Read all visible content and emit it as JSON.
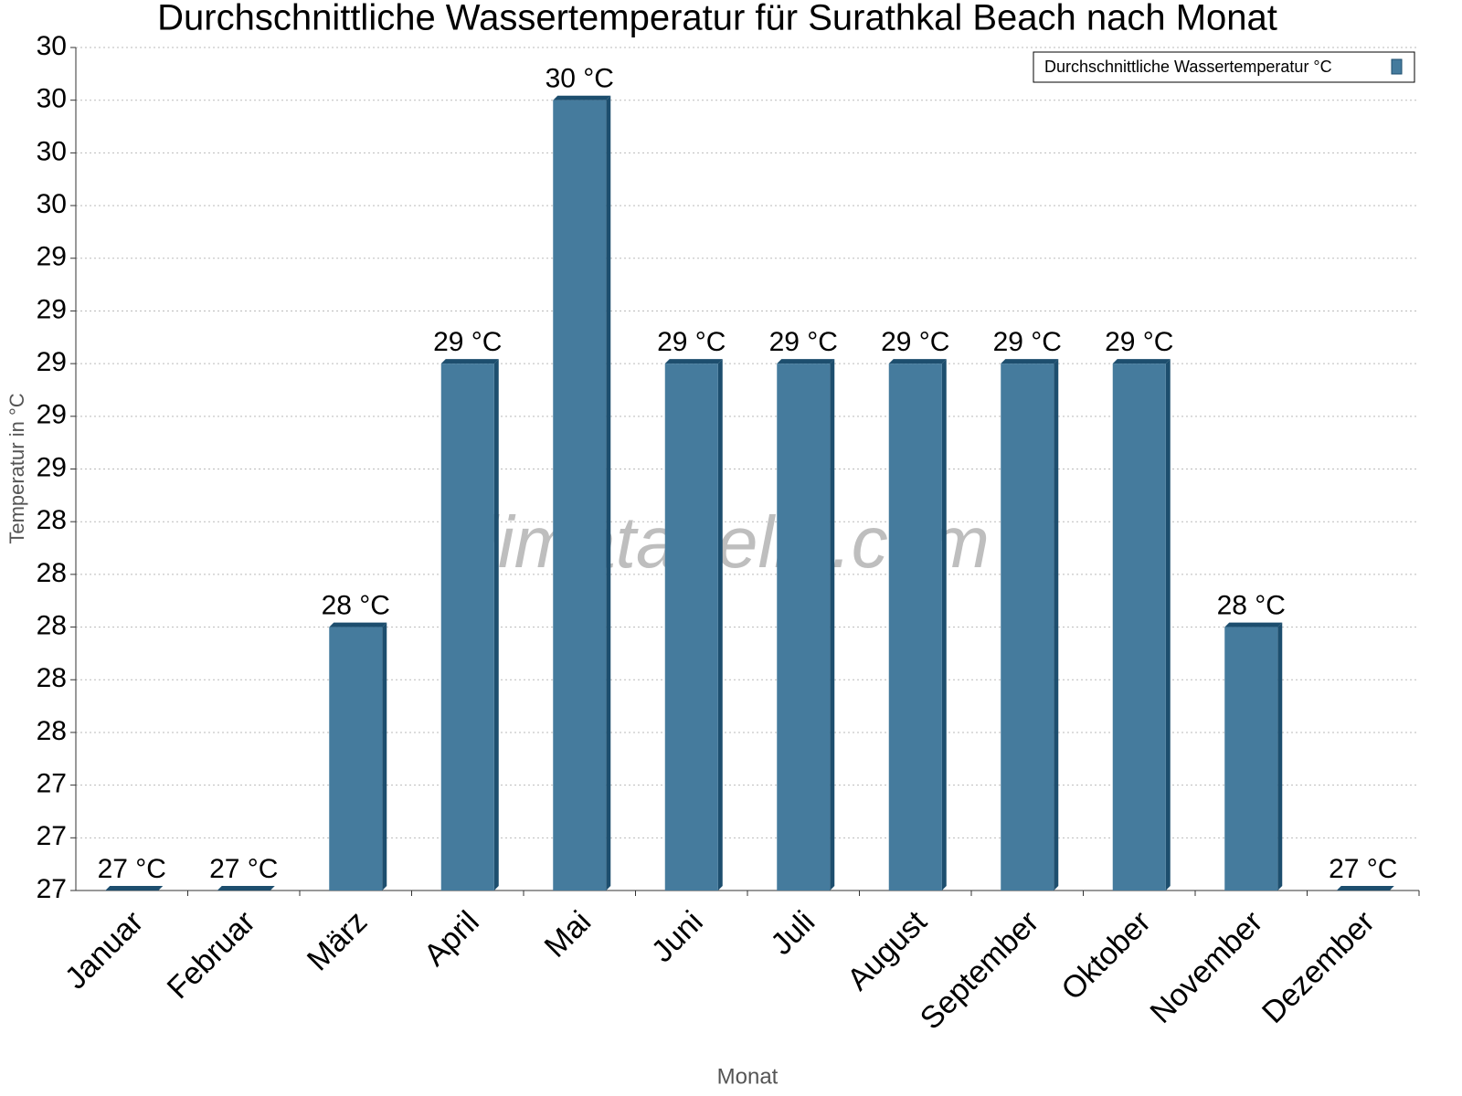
{
  "chart_data": {
    "type": "bar",
    "title": "Durchschnittliche Wassertemperatur für Surathkal Beach nach Monat",
    "watermark": "klimatabelle.com",
    "x_label": "Monat",
    "y_label": "Temperatur in °C",
    "legend_position": "top-right",
    "grid": true,
    "categories": [
      "Januar",
      "Februar",
      "März",
      "April",
      "Mai",
      "Juni",
      "Juli",
      "August",
      "September",
      "Oktober",
      "November",
      "Dezember"
    ],
    "series": [
      {
        "name": "Durchschnittliche Wassertemperatur °C",
        "color": "#457b9d",
        "side_color": "#1d4e6e",
        "values": [
          27,
          27,
          28,
          29,
          30,
          29,
          29,
          29,
          29,
          29,
          28,
          27
        ],
        "value_labels": [
          "27 °C",
          "27 °C",
          "28 °C",
          "29 °C",
          "30 °C",
          "29 °C",
          "29 °C",
          "29 °C",
          "29 °C",
          "29 °C",
          "28 °C",
          "27 °C"
        ]
      }
    ],
    "ylim": [
      27,
      30.2
    ],
    "yticks": [
      27,
      {
        "value": 27.2,
        "label": "27"
      },
      {
        "value": 27.4,
        "label": "27"
      },
      {
        "value": 27.6,
        "label": "28"
      },
      {
        "value": 27.8,
        "label": "28"
      },
      28,
      {
        "value": 28.2,
        "label": "28"
      },
      {
        "value": 28.4,
        "label": "28"
      },
      {
        "value": 28.6,
        "label": "29"
      },
      {
        "value": 28.8,
        "label": "29"
      },
      29,
      {
        "value": 29.2,
        "label": "29"
      },
      {
        "value": 29.4,
        "label": "29"
      },
      {
        "value": 29.6,
        "label": "30"
      },
      {
        "value": 29.8,
        "label": "30"
      },
      30,
      {
        "value": 30.2,
        "label": "30"
      }
    ]
  }
}
